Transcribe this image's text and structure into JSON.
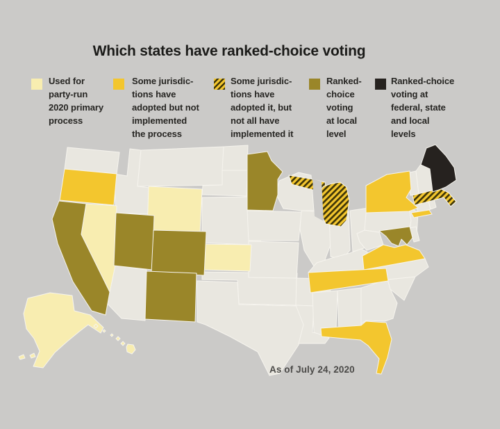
{
  "title": "Which states have ranked-choice voting",
  "caption": "As of July 24, 2020",
  "colors": {
    "background": "#cbcac8",
    "land": "#e9e7e0",
    "state_border": "#f6f4ee",
    "title_text": "#1b1b19",
    "legend_text": "#262522",
    "caption_text": "#4b4a48",
    "categories": {
      "primary_2020": "#f8edb0",
      "adopted_not_implemented": "#f3c62e",
      "partially_implemented": {
        "base": "#f3c62e",
        "stripe": "#3e3508"
      },
      "local_level": "#9a8629",
      "federal_state_local": "#26221f",
      "none": "#e9e7e0"
    }
  },
  "legend": [
    {
      "category": "primary_2020",
      "swatch": "solid",
      "label": "Used for\nparty-run\n2020 primary\nprocess"
    },
    {
      "category": "adopted_not_implemented",
      "swatch": "solid",
      "label": "Some jurisdic-\ntions have\nadopted but not\nimplemented\nthe process"
    },
    {
      "category": "partially_implemented",
      "swatch": "hatched",
      "label": "Some jurisdic-\ntions have\nadopted it, but\nnot all have\nimplemented it"
    },
    {
      "category": "local_level",
      "swatch": "solid",
      "label": "Ranked-\nchoice\nvoting\nat local\nlevel"
    },
    {
      "category": "federal_state_local",
      "swatch": "solid",
      "label": "Ranked-choice\nvoting at\nfederal, state\nand local\nlevels"
    }
  ],
  "map": {
    "states": {
      "Washington": "none",
      "Idaho": "none",
      "Montana": "none",
      "North Dakota": "none",
      "South Dakota": "none",
      "Nebraska": "none",
      "Oklahoma": "none",
      "Texas": "none",
      "Arizona": "none",
      "Iowa": "none",
      "Missouri": "none",
      "Arkansas": "none",
      "Louisiana": "none",
      "Wisconsin": "none",
      "Illinois": "none",
      "Indiana": "none",
      "Ohio": "none",
      "Kentucky": "none",
      "Mississippi": "none",
      "Alabama": "none",
      "Georgia": "none",
      "South Carolina": "none",
      "North Carolina": "none",
      "West Virginia": "none",
      "Pennsylvania": "none",
      "New Jersey": "none",
      "Delaware": "none",
      "Connecticut": "none",
      "Rhode Island": "none",
      "Vermont": "none",
      "New Hampshire": "none",
      "Nevada": "primary_2020",
      "Wyoming": "primary_2020",
      "Kansas": "primary_2020",
      "Alaska": "primary_2020",
      "Hawaii": "primary_2020",
      "Oregon": "adopted_not_implemented",
      "New York": "adopted_not_implemented",
      "Virginia": "adopted_not_implemented",
      "Tennessee": "adopted_not_implemented",
      "Florida": "adopted_not_implemented",
      "Michigan": "partially_implemented",
      "Massachusetts": "partially_implemented",
      "California": "local_level",
      "Utah": "local_level",
      "Colorado": "local_level",
      "New Mexico": "local_level",
      "Minnesota": "local_level",
      "Maryland": "local_level",
      "Maine": "federal_state_local"
    }
  }
}
